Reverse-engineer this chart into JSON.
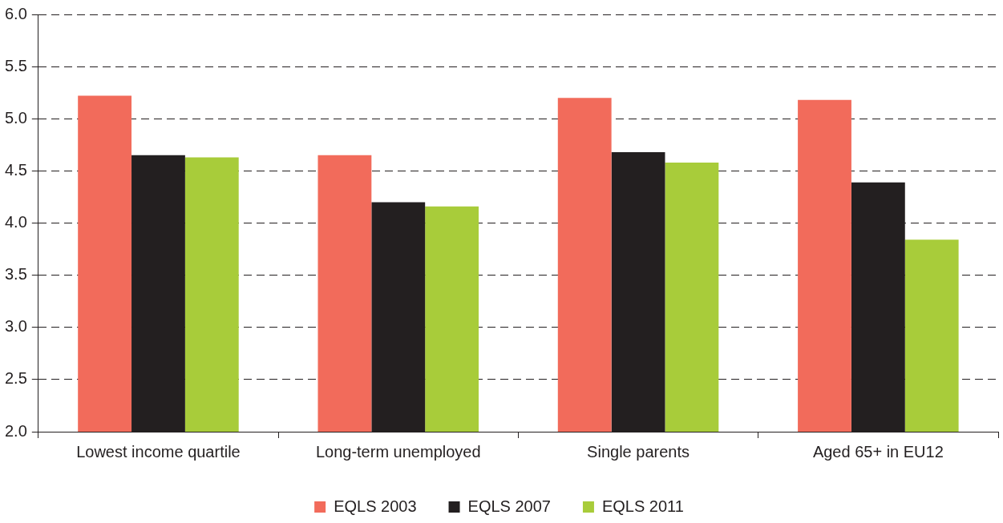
{
  "chart_data": {
    "type": "bar",
    "categories": [
      "Lowest income quartile",
      "Long-term unemployed",
      "Single parents",
      "Aged 65+ in EU12"
    ],
    "series": [
      {
        "name": "EQLS 2003",
        "color": "#f26b5b",
        "values": [
          5.22,
          4.65,
          5.2,
          5.18
        ]
      },
      {
        "name": "EQLS 2007",
        "color": "#231f20",
        "values": [
          4.65,
          4.2,
          4.68,
          4.39
        ]
      },
      {
        "name": "EQLS 2011",
        "color": "#a8cc3a",
        "values": [
          4.63,
          4.16,
          4.58,
          3.84
        ]
      }
    ],
    "ylim": [
      2,
      6
    ],
    "yticks": [
      {
        "value": 2,
        "label": "2.0"
      },
      {
        "value": 2.5,
        "label": "2.5"
      },
      {
        "value": 3,
        "label": "3.0"
      },
      {
        "value": 3.5,
        "label": "3.5"
      },
      {
        "value": 4,
        "label": "4.0"
      },
      {
        "value": 4.5,
        "label": "4.5"
      },
      {
        "value": 5,
        "label": "5.0"
      },
      {
        "value": 5.5,
        "label": "5.5"
      },
      {
        "value": 6,
        "label": "6.0"
      }
    ],
    "grid": "y",
    "legend": "bottom"
  }
}
